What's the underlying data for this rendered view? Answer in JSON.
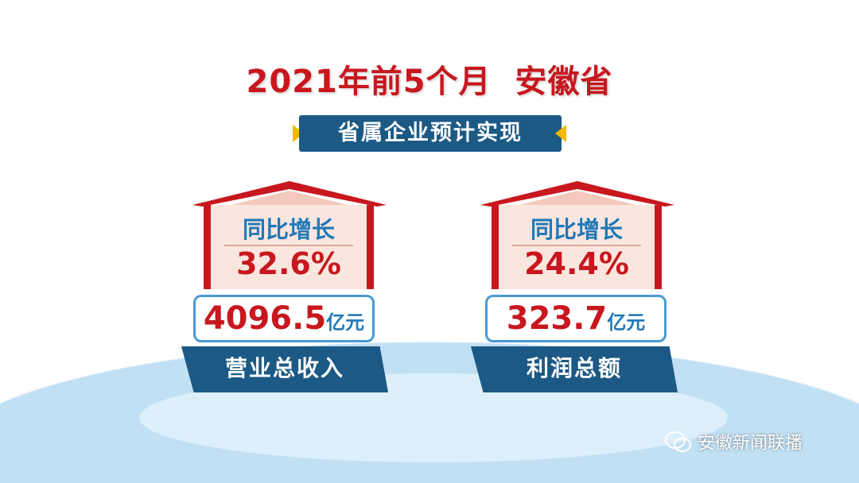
{
  "title": "2021年前5个月  安徽省",
  "subtitle": "省属企业预计实现",
  "cards": [
    {
      "growth_label": "同比增长",
      "growth": "32.6%",
      "value": "4096.5",
      "unit": "亿元",
      "label": "营业总收入"
    },
    {
      "growth_label": "同比增长",
      "growth": "24.4%",
      "value": "323.7",
      "unit": "亿元",
      "label": "利润总额"
    }
  ],
  "watermark": "安徽新闻联播",
  "colors": {
    "red": "#c8171e",
    "navy": "#1c5985",
    "blue": "#1f78b8",
    "accent": "#f5b800"
  }
}
